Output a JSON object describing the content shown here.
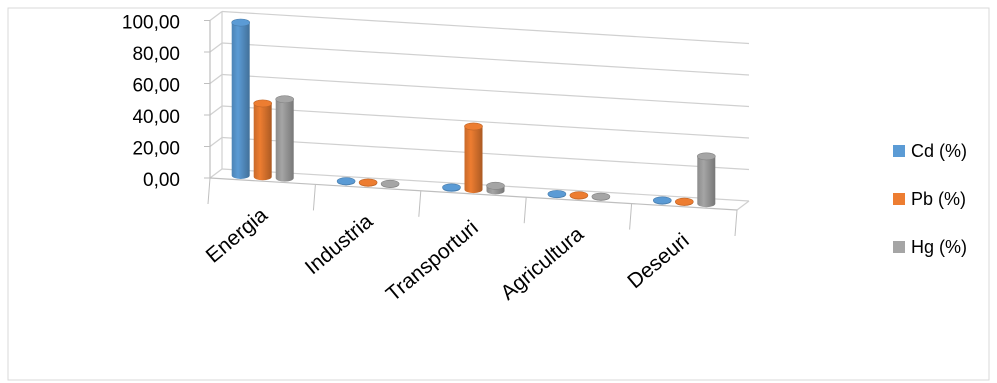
{
  "chart_data": {
    "type": "bar",
    "categories": [
      "Energia",
      "Industria",
      "Transporturi",
      "Agricultura",
      "Deseuri"
    ],
    "series": [
      {
        "name": "Cd (%)",
        "color": "#5B9BD5",
        "values": [
          97.0,
          0.3,
          0.5,
          0.2,
          0.3
        ]
      },
      {
        "name": "Pb (%)",
        "color": "#ED7D31",
        "values": [
          46.5,
          0.3,
          40.0,
          0.2,
          0.3
        ]
      },
      {
        "name": "Hg (%)",
        "color": "#A5A5A5",
        "values": [
          50.0,
          0.4,
          3.2,
          0.2,
          30.0
        ]
      }
    ],
    "y_ticks": [
      "0,00",
      "20,00",
      "40,00",
      "60,00",
      "80,00",
      "100,00"
    ],
    "ylim": [
      0,
      100
    ],
    "grid": true,
    "legend_position": "right",
    "title": "",
    "xlabel": "",
    "ylabel": ""
  }
}
